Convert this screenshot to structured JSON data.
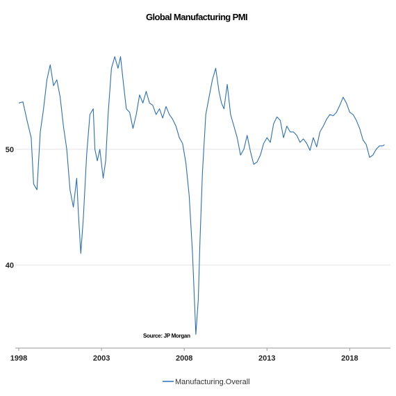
{
  "chart_data": {
    "type": "line",
    "title": "Global Manufacturing PMI",
    "xlabel": "",
    "ylabel": "",
    "source_note": "Source: JP Morgan",
    "x_range": [
      1998.0,
      2020.25
    ],
    "ylim": [
      33.0,
      60.5
    ],
    "grid": "horizontal",
    "legend_position": "bottom",
    "x_ticks": [
      {
        "value": 1998,
        "label": "1998"
      },
      {
        "value": 2003,
        "label": "2003"
      },
      {
        "value": 2008,
        "label": "2008"
      },
      {
        "value": 2013,
        "label": "2013"
      },
      {
        "value": 2018,
        "label": "2018"
      }
    ],
    "y_ticks": [
      {
        "value": 40,
        "label": "40"
      },
      {
        "value": 50,
        "label": "50"
      }
    ],
    "series": [
      {
        "name": "Manufacturing.Overall",
        "color": "#2a6fb5",
        "x": [
          1998.0,
          1998.25,
          1998.5,
          1998.75,
          1998.9,
          1999.1,
          1999.3,
          1999.5,
          1999.7,
          1999.9,
          2000.1,
          2000.3,
          2000.5,
          2000.7,
          2000.9,
          2001.1,
          2001.3,
          2001.5,
          2001.6,
          2001.75,
          2001.9,
          2002.1,
          2002.3,
          2002.5,
          2002.6,
          2002.75,
          2002.9,
          2003.1,
          2003.25,
          2003.4,
          2003.6,
          2003.8,
          2004.0,
          2004.15,
          2004.3,
          2004.5,
          2004.7,
          2004.9,
          2005.1,
          2005.3,
          2005.5,
          2005.7,
          2005.9,
          2006.1,
          2006.3,
          2006.5,
          2006.7,
          2006.9,
          2007.1,
          2007.3,
          2007.5,
          2007.7,
          2007.9,
          2008.1,
          2008.3,
          2008.5,
          2008.7,
          2008.85,
          2008.95,
          2009.1,
          2009.3,
          2009.5,
          2009.7,
          2009.9,
          2010.1,
          2010.25,
          2010.4,
          2010.6,
          2010.8,
          2011.0,
          2011.2,
          2011.4,
          2011.6,
          2011.8,
          2012.0,
          2012.2,
          2012.4,
          2012.6,
          2012.8,
          2013.0,
          2013.2,
          2013.4,
          2013.6,
          2013.8,
          2014.0,
          2014.2,
          2014.4,
          2014.6,
          2014.8,
          2015.0,
          2015.2,
          2015.4,
          2015.6,
          2015.8,
          2016.0,
          2016.2,
          2016.4,
          2016.6,
          2016.8,
          2017.0,
          2017.2,
          2017.4,
          2017.6,
          2017.8,
          2018.0,
          2018.2,
          2018.4,
          2018.6,
          2018.8,
          2019.0,
          2019.2,
          2019.4,
          2019.6,
          2019.8,
          2020.0,
          2020.1
        ],
        "values": [
          54.0,
          54.1,
          52.5,
          51.0,
          47.0,
          46.5,
          51.5,
          53.5,
          56.0,
          57.3,
          55.5,
          56.0,
          54.5,
          52.0,
          50.0,
          46.5,
          45.0,
          47.5,
          44.5,
          41.0,
          44.0,
          49.5,
          53.0,
          53.5,
          50.0,
          49.0,
          50.0,
          47.5,
          49.0,
          53.0,
          57.0,
          58.0,
          57.0,
          58.0,
          56.0,
          53.5,
          53.2,
          51.8,
          53.0,
          54.7,
          54.0,
          55.0,
          54.0,
          53.8,
          53.0,
          53.5,
          52.7,
          53.7,
          53.0,
          52.6,
          52.0,
          51.0,
          50.5,
          48.8,
          46.0,
          41.0,
          34.0,
          37.0,
          42.0,
          48.0,
          53.0,
          54.5,
          56.0,
          57.0,
          55.0,
          54.0,
          53.5,
          55.6,
          53.0,
          52.0,
          51.0,
          49.5,
          50.0,
          51.2,
          49.8,
          48.7,
          48.9,
          49.5,
          50.5,
          51.0,
          50.6,
          52.2,
          52.8,
          52.5,
          51.0,
          52.0,
          51.5,
          51.5,
          51.2,
          50.6,
          50.9,
          50.5,
          49.9,
          51.0,
          50.2,
          51.5,
          52.0,
          52.6,
          53.0,
          52.9,
          53.2,
          53.8,
          54.5,
          54.0,
          53.2,
          53.0,
          52.5,
          51.8,
          50.8,
          50.4,
          49.3,
          49.5,
          50.0,
          50.3,
          50.3,
          50.4
        ]
      }
    ]
  }
}
